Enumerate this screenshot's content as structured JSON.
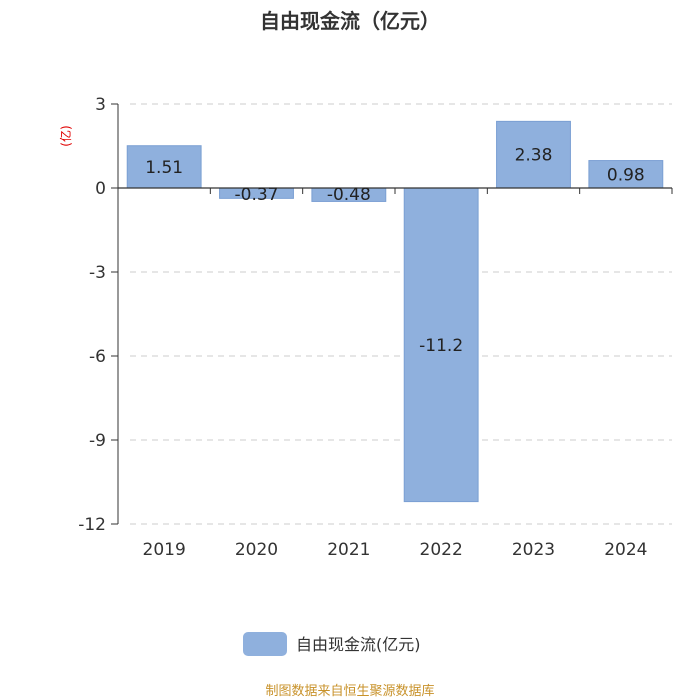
{
  "chart_data": {
    "type": "bar",
    "title": "自由现金流（亿元）",
    "ylabel": "(亿)",
    "xlabel": "",
    "categories": [
      "2019",
      "2020",
      "2021",
      "2022",
      "2023",
      "2024"
    ],
    "series": [
      {
        "name": "自由现金流(亿元)",
        "values": [
          1.51,
          -0.37,
          -0.48,
          -11.2,
          2.38,
          0.98
        ],
        "labels": [
          "1.51",
          "-0.37",
          "-0.48",
          "-11.2",
          "2.38",
          "0.98"
        ],
        "color": "#8fb0dd"
      }
    ],
    "ylim": [
      -12,
      3
    ],
    "yticks": [
      3,
      0,
      -3,
      -6,
      -9,
      -12
    ],
    "grid": true,
    "legend_position": "bottom"
  },
  "source": "制图数据来自恒生聚源数据库",
  "colors": {
    "bar": "#8fb0dd",
    "bar_stroke": "#7a9fd3",
    "axis": "#333333",
    "grid": "#cccccc",
    "title": "#333333",
    "unit": "#e00000",
    "source": "#c8922a"
  }
}
